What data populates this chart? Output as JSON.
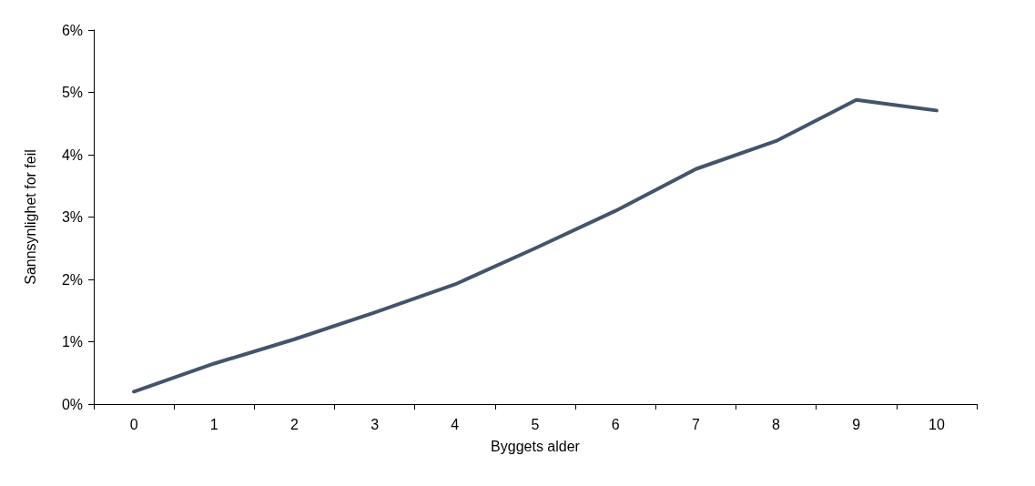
{
  "chart_data": {
    "type": "line",
    "xlabel": "Byggets alder",
    "ylabel": "Sannsynlighet for feil",
    "categories": [
      "0",
      "1",
      "2",
      "3",
      "4",
      "5",
      "6",
      "7",
      "8",
      "9",
      "10"
    ],
    "series": [
      {
        "color": "#44546a",
        "values": [
          0.2,
          0.65,
          1.04,
          1.47,
          1.92,
          2.5,
          3.1,
          3.77,
          4.22,
          4.88,
          4.71
        ]
      }
    ],
    "ylim": [
      0,
      6
    ],
    "yticks": [
      {
        "value": 0,
        "label": "0%"
      },
      {
        "value": 1,
        "label": "1%"
      },
      {
        "value": 2,
        "label": "2%"
      },
      {
        "value": 3,
        "label": "3%"
      },
      {
        "value": 4,
        "label": "4%"
      },
      {
        "value": 5,
        "label": "5%"
      },
      {
        "value": 6,
        "label": "6%"
      }
    ],
    "grid": false,
    "marker": "none",
    "line_style": "solid"
  }
}
